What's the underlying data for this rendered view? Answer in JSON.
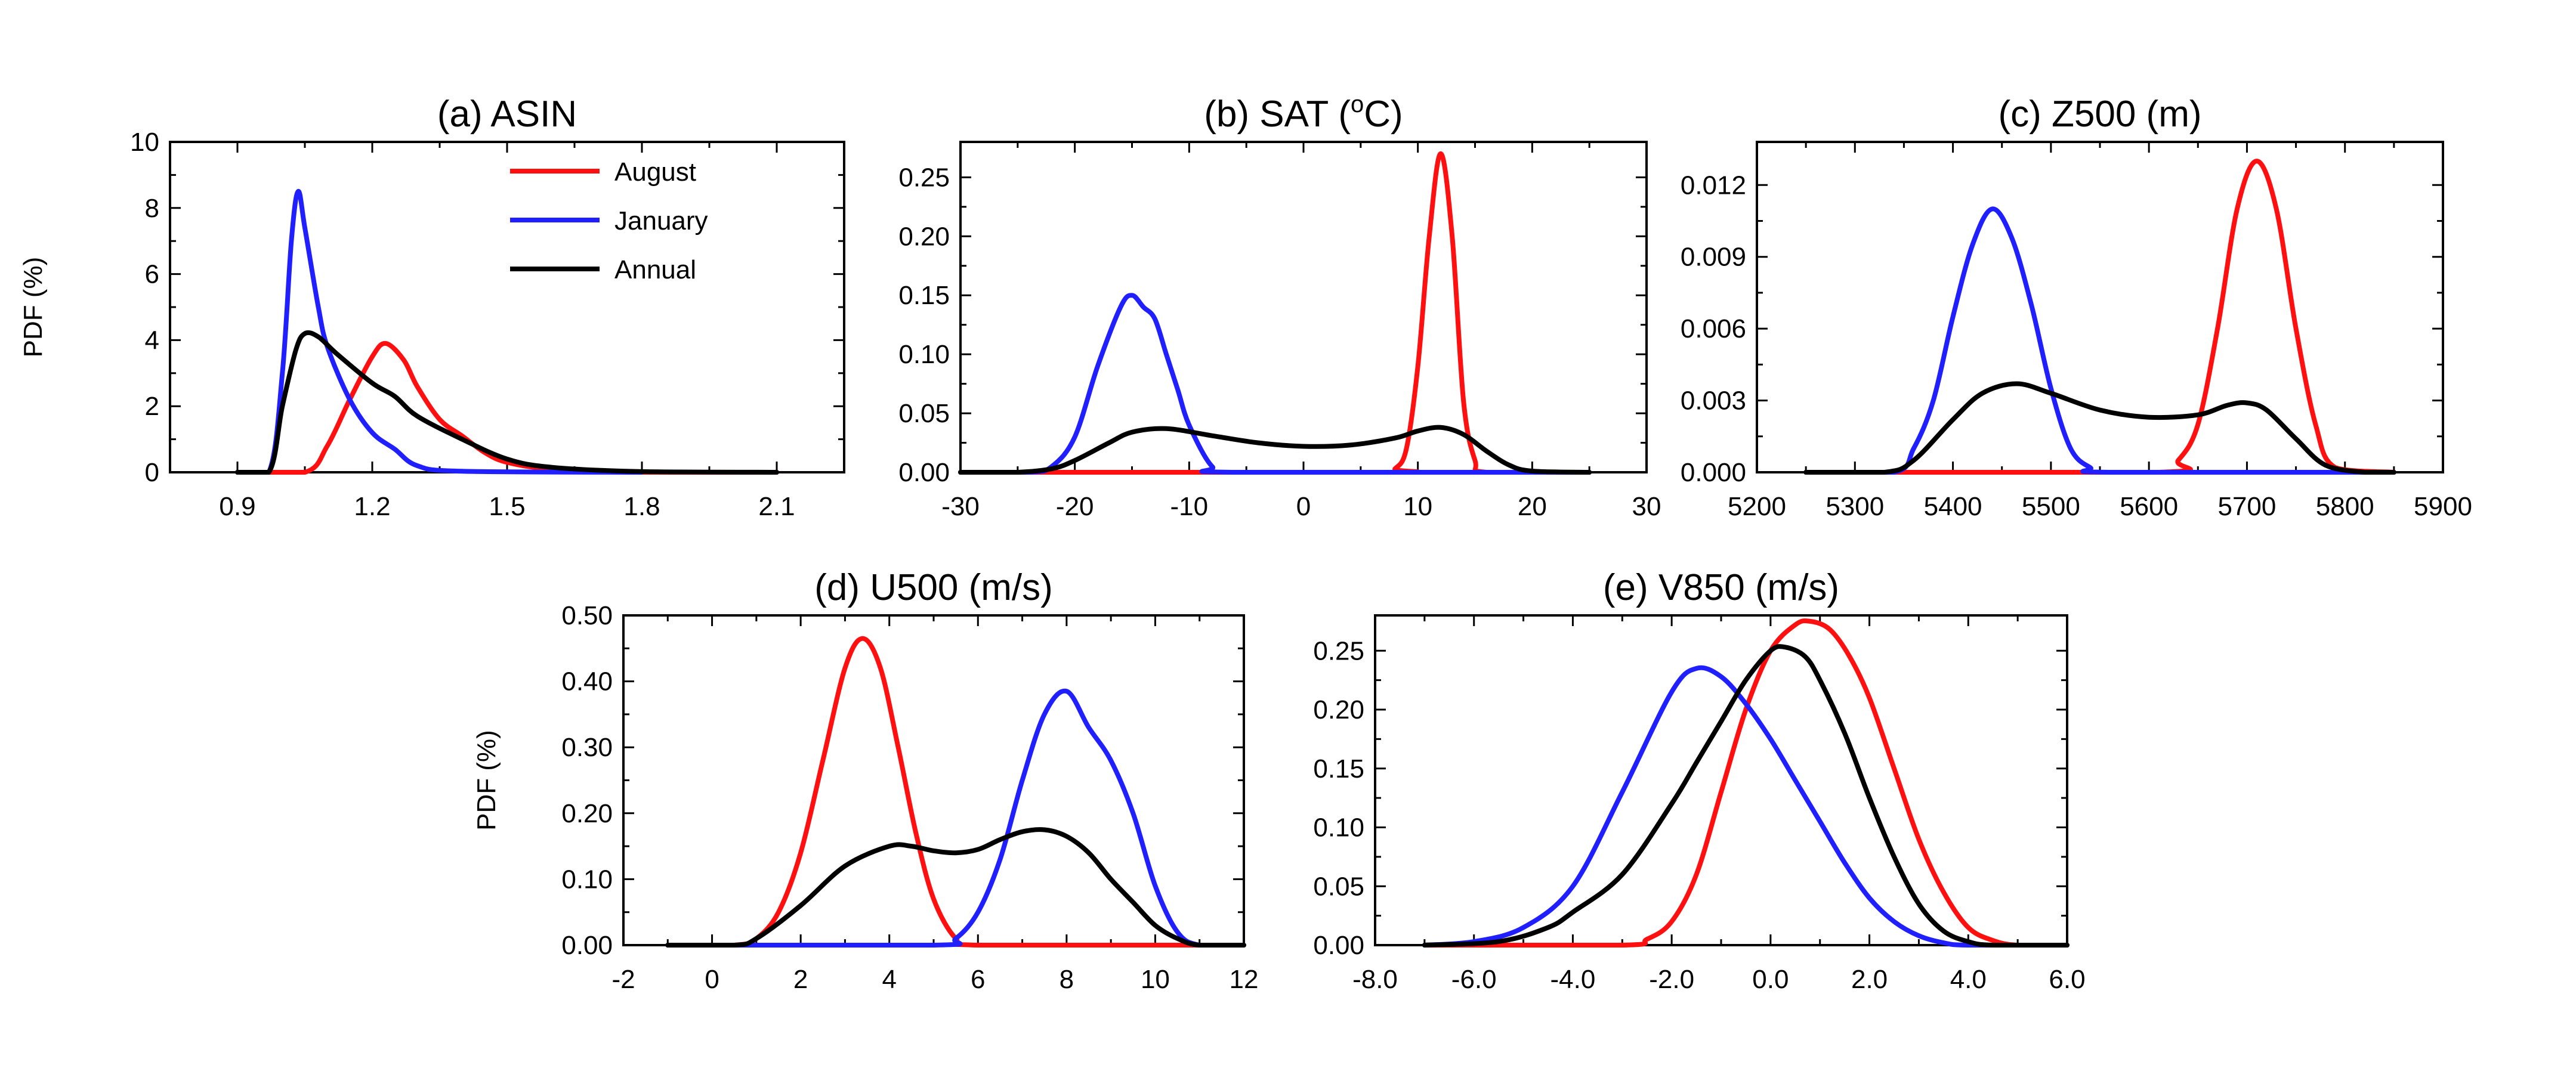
{
  "colors": {
    "August": "#ff1010",
    "January": "#1f1fff",
    "Annual": "#000000",
    "axis": "#000000"
  },
  "legend": {
    "labels": [
      "August",
      "January",
      "Annual"
    ],
    "placement": "top-right of panel (a)"
  },
  "chart_data": [
    {
      "type": "line",
      "title": "(a) ASIN",
      "ylabel": "PDF (%)",
      "xlim": [
        0.75,
        2.25
      ],
      "ylim": [
        0,
        10
      ],
      "xticks": [
        0.9,
        1.2,
        1.5,
        1.8,
        2.1
      ],
      "xtick_labels": [
        "0.9",
        "1.2",
        "1.5",
        "1.8",
        "2.1"
      ],
      "yticks": [
        0,
        2,
        4,
        6,
        8,
        10
      ],
      "ytick_labels": [
        "0",
        "2",
        "4",
        "6",
        "8",
        "10"
      ],
      "grid": false,
      "series": [
        {
          "name": "August",
          "x": [
            0.9,
            1.05,
            1.1,
            1.15,
            1.2,
            1.23,
            1.27,
            1.3,
            1.35,
            1.4,
            1.45,
            1.5,
            1.6,
            1.8,
            2.1
          ],
          "y": [
            0,
            0,
            0.8,
            2.2,
            3.5,
            3.9,
            3.4,
            2.6,
            1.6,
            1.1,
            0.6,
            0.3,
            0.1,
            0,
            0
          ]
        },
        {
          "name": "January",
          "x": [
            0.9,
            0.97,
            1.0,
            1.02,
            1.035,
            1.05,
            1.08,
            1.1,
            1.15,
            1.2,
            1.25,
            1.3,
            1.4,
            1.8
          ],
          "y": [
            0,
            0,
            3.0,
            7.0,
            8.5,
            7.4,
            5.0,
            3.8,
            2.2,
            1.2,
            0.7,
            0.2,
            0.03,
            0
          ]
        },
        {
          "name": "Annual",
          "x": [
            0.9,
            0.97,
            1.0,
            1.03,
            1.05,
            1.08,
            1.12,
            1.2,
            1.25,
            1.3,
            1.4,
            1.5,
            1.6,
            1.8,
            2.1
          ],
          "y": [
            0,
            0,
            2.0,
            3.7,
            4.2,
            4.1,
            3.6,
            2.7,
            2.3,
            1.7,
            1.0,
            0.4,
            0.15,
            0.02,
            0
          ]
        }
      ]
    },
    {
      "type": "line",
      "title": "(b) SAT (oC)",
      "ylabel": "",
      "xlim": [
        -30,
        30
      ],
      "ylim": [
        0,
        0.28
      ],
      "xticks": [
        -30,
        -20,
        -10,
        0,
        10,
        20,
        30
      ],
      "xtick_labels": [
        "-30",
        "-20",
        "-10",
        "0",
        "10",
        "20",
        "30"
      ],
      "yticks": [
        0,
        0.05,
        0.1,
        0.15,
        0.2,
        0.25
      ],
      "ytick_labels": [
        "0.00",
        "0.05",
        "0.10",
        "0.15",
        "0.20",
        "0.25"
      ],
      "grid": false,
      "series": [
        {
          "name": "August",
          "x": [
            -30,
            7,
            8,
            9,
            10,
            11,
            12,
            13,
            14,
            15,
            16,
            25
          ],
          "y": [
            0,
            0,
            0.003,
            0.02,
            0.09,
            0.2,
            0.27,
            0.2,
            0.06,
            0.01,
            0,
            0
          ]
        },
        {
          "name": "January",
          "x": [
            -30,
            -24,
            -22,
            -20,
            -18,
            -16,
            -15,
            -14,
            -13,
            -12,
            -11,
            -10,
            -8,
            -6,
            25
          ],
          "y": [
            0,
            0,
            0.005,
            0.03,
            0.09,
            0.14,
            0.15,
            0.14,
            0.13,
            0.1,
            0.07,
            0.04,
            0.005,
            0,
            0
          ]
        },
        {
          "name": "Annual",
          "x": [
            -30,
            -25,
            -22,
            -20,
            -17,
            -15,
            -12,
            -8,
            -4,
            0,
            4,
            8,
            10,
            12,
            14,
            16,
            18,
            20,
            25
          ],
          "y": [
            0,
            0,
            0.003,
            0.01,
            0.025,
            0.034,
            0.037,
            0.031,
            0.025,
            0.022,
            0.023,
            0.029,
            0.035,
            0.038,
            0.032,
            0.018,
            0.006,
            0.001,
            0
          ]
        }
      ]
    },
    {
      "type": "line",
      "title": "(c) Z500 (m)",
      "ylabel": "",
      "xlim": [
        5200,
        5900
      ],
      "ylim": [
        0,
        0.0138
      ],
      "xticks": [
        5200,
        5300,
        5400,
        5500,
        5600,
        5700,
        5800,
        5900
      ],
      "xtick_labels": [
        "5200",
        "5300",
        "5400",
        "5500",
        "5600",
        "5700",
        "5800",
        "5900"
      ],
      "yticks": [
        0,
        0.003,
        0.006,
        0.009,
        0.012
      ],
      "ytick_labels": [
        "0.000",
        "0.003",
        "0.006",
        "0.009",
        "0.012"
      ],
      "grid": false,
      "series": [
        {
          "name": "August",
          "x": [
            5250,
            5610,
            5630,
            5650,
            5670,
            5690,
            5710,
            5730,
            5750,
            5770,
            5790,
            5850
          ],
          "y": [
            0,
            0,
            0.0005,
            0.002,
            0.006,
            0.011,
            0.013,
            0.011,
            0.006,
            0.002,
            0.0002,
            0
          ]
        },
        {
          "name": "January",
          "x": [
            5250,
            5340,
            5360,
            5380,
            5400,
            5420,
            5440,
            5460,
            5480,
            5500,
            5520,
            5540,
            5560,
            5850
          ],
          "y": [
            0,
            0,
            0.001,
            0.003,
            0.0065,
            0.0095,
            0.011,
            0.0098,
            0.007,
            0.0035,
            0.001,
            0.0002,
            0,
            0
          ]
        },
        {
          "name": "Annual",
          "x": [
            5250,
            5330,
            5360,
            5400,
            5430,
            5465,
            5500,
            5550,
            5600,
            5650,
            5680,
            5700,
            5720,
            5750,
            5780,
            5820,
            5850
          ],
          "y": [
            0,
            0,
            0.0005,
            0.0022,
            0.0033,
            0.0037,
            0.0033,
            0.0026,
            0.0023,
            0.0024,
            0.0028,
            0.0029,
            0.0026,
            0.0014,
            0.0003,
            0,
            0
          ]
        }
      ]
    },
    {
      "type": "line",
      "title": "(d) U500 (m/s)",
      "ylabel": "PDF (%)",
      "xlim": [
        -2,
        12
      ],
      "ylim": [
        0,
        0.5
      ],
      "xticks": [
        -2,
        0,
        2,
        4,
        6,
        8,
        10,
        12
      ],
      "xtick_labels": [
        "-2",
        "0",
        "2",
        "4",
        "6",
        "8",
        "10",
        "12"
      ],
      "yticks": [
        0,
        0.1,
        0.2,
        0.3,
        0.4,
        0.5
      ],
      "ytick_labels": [
        "0.00",
        "0.10",
        "0.20",
        "0.30",
        "0.40",
        "0.50"
      ],
      "grid": false,
      "series": [
        {
          "name": "August",
          "x": [
            -1,
            0.5,
            1.0,
            1.5,
            2.0,
            2.5,
            3.0,
            3.4,
            3.8,
            4.2,
            4.6,
            5.0,
            5.5,
            6.0,
            11
          ],
          "y": [
            0,
            0,
            0.01,
            0.05,
            0.14,
            0.28,
            0.42,
            0.465,
            0.42,
            0.3,
            0.17,
            0.07,
            0.01,
            0,
            0
          ]
        },
        {
          "name": "January",
          "x": [
            -1,
            5.0,
            5.5,
            6.0,
            6.5,
            7.0,
            7.5,
            8.0,
            8.5,
            9.0,
            9.5,
            10.0,
            10.5,
            11,
            12
          ],
          "y": [
            0,
            0,
            0.01,
            0.05,
            0.13,
            0.25,
            0.35,
            0.385,
            0.33,
            0.28,
            0.2,
            0.09,
            0.02,
            0,
            0
          ]
        },
        {
          "name": "Annual",
          "x": [
            -1,
            0.5,
            1.0,
            2.0,
            3.0,
            4.0,
            4.5,
            5.0,
            5.5,
            6.0,
            6.5,
            7.0,
            7.5,
            8.0,
            8.5,
            9.0,
            9.5,
            10.0,
            10.5,
            11,
            12
          ],
          "y": [
            0,
            0,
            0.01,
            0.06,
            0.12,
            0.15,
            0.15,
            0.143,
            0.14,
            0.145,
            0.16,
            0.172,
            0.175,
            0.165,
            0.14,
            0.1,
            0.065,
            0.03,
            0.01,
            0,
            0
          ]
        }
      ]
    },
    {
      "type": "line",
      "title": "(e) V850 (m/s)",
      "ylabel": "",
      "xlim": [
        -8,
        6
      ],
      "ylim": [
        0,
        0.28
      ],
      "xticks": [
        -8,
        -6,
        -4,
        -2,
        0,
        2,
        4,
        6
      ],
      "xtick_labels": [
        "-8.0",
        "-6.0",
        "-4.0",
        "-2.0",
        "0.0",
        "2.0",
        "4.0",
        "6.0"
      ],
      "yticks": [
        0,
        0.05,
        0.1,
        0.15,
        0.2,
        0.25
      ],
      "ytick_labels": [
        "0.00",
        "0.05",
        "0.10",
        "0.15",
        "0.20",
        "0.25"
      ],
      "grid": false,
      "series": [
        {
          "name": "August",
          "x": [
            -7,
            -3.0,
            -2.5,
            -2.0,
            -1.5,
            -1.0,
            -0.5,
            0,
            0.5,
            0.8,
            1.2,
            1.6,
            2.0,
            2.5,
            3.0,
            3.5,
            4.0,
            4.5,
            5.0,
            6.0
          ],
          "y": [
            0,
            0,
            0.005,
            0.02,
            0.06,
            0.13,
            0.2,
            0.25,
            0.272,
            0.275,
            0.268,
            0.245,
            0.21,
            0.15,
            0.09,
            0.045,
            0.015,
            0.004,
            0,
            0
          ]
        },
        {
          "name": "January",
          "x": [
            -7,
            -6.0,
            -5.0,
            -4.0,
            -3.0,
            -2.0,
            -1.5,
            -1.0,
            -0.5,
            0,
            0.5,
            1.0,
            1.5,
            2.0,
            2.5,
            3.0,
            3.5,
            4.0,
            6.0
          ],
          "y": [
            0,
            0.003,
            0.015,
            0.05,
            0.13,
            0.215,
            0.235,
            0.228,
            0.205,
            0.175,
            0.14,
            0.105,
            0.07,
            0.04,
            0.02,
            0.008,
            0.002,
            0,
            0
          ]
        },
        {
          "name": "Annual",
          "x": [
            -7,
            -5.5,
            -4.5,
            -4.0,
            -3.0,
            -2.0,
            -1.5,
            -1.0,
            -0.5,
            0,
            0.3,
            0.7,
            1.0,
            1.5,
            2.0,
            2.5,
            3.0,
            3.5,
            4.0,
            4.5,
            6.0
          ],
          "y": [
            0,
            0.003,
            0.015,
            0.028,
            0.06,
            0.12,
            0.155,
            0.19,
            0.225,
            0.25,
            0.253,
            0.245,
            0.225,
            0.18,
            0.125,
            0.075,
            0.035,
            0.012,
            0.003,
            0,
            0
          ]
        }
      ]
    }
  ]
}
